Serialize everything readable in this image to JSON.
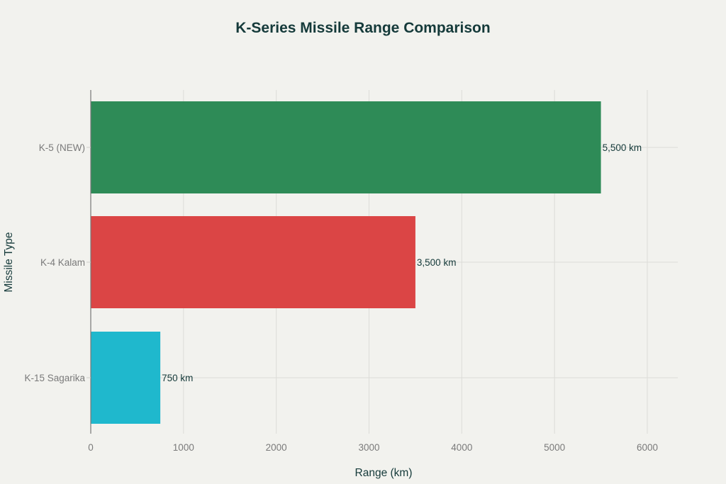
{
  "title": "K-Series Missile Range Comparison",
  "chart_data": {
    "type": "bar",
    "orientation": "horizontal",
    "title": "K-Series Missile Range Comparison",
    "xlabel": "Range (km)",
    "ylabel": "Missile Type",
    "categories": [
      "K-5 (NEW)",
      "K-4 Kalam",
      "K-15 Sagarika"
    ],
    "values": [
      5500,
      3500,
      750
    ],
    "data_labels": [
      "5,500 km",
      "3,500 km",
      "750 km"
    ],
    "colors": [
      "#2e8b57",
      "#db4545",
      "#1fb8cd"
    ],
    "xlim": [
      0,
      6330
    ],
    "xticks": [
      0,
      1000,
      2000,
      3000,
      4000,
      5000,
      6000
    ],
    "xtick_labels": [
      "0",
      "1000",
      "2000",
      "3000",
      "4000",
      "5000",
      "6000"
    ],
    "grid": true,
    "legend": "none"
  }
}
